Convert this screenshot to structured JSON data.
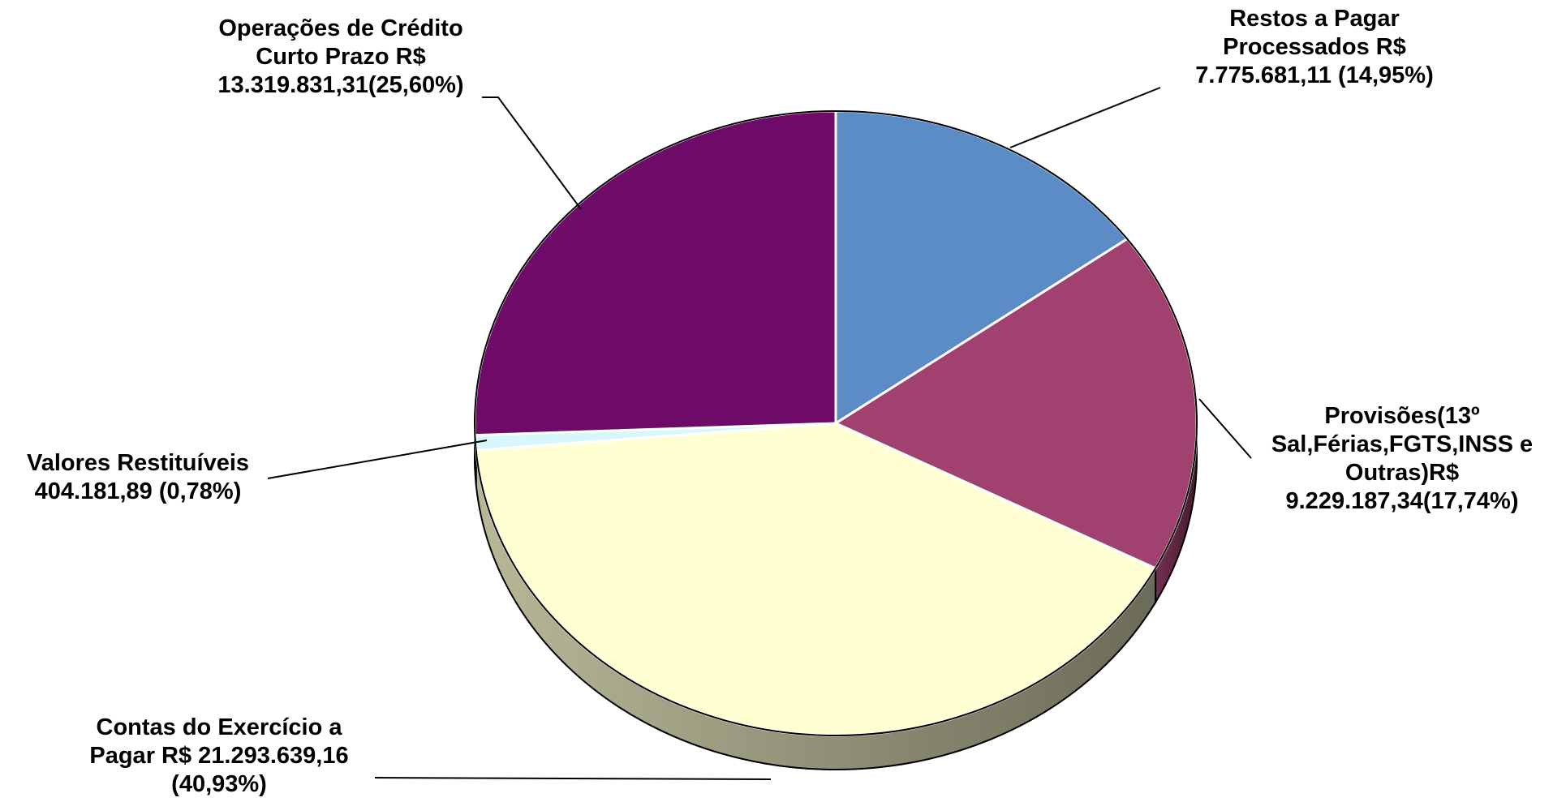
{
  "chart_data": {
    "type": "pie",
    "title": "",
    "slices": [
      {
        "category": "Restos a Pagar Processados",
        "value": 7775681.11,
        "percent": 14.95,
        "color": "#5B8CC6",
        "label_lines": [
          "Restos a Pagar",
          "Processados R$",
          "7.775.681,11  (14,95%)"
        ]
      },
      {
        "category": "Provisões(13º Sal,Férias,FGTS,INSS e Outras)",
        "value": 9229187.34,
        "percent": 17.74,
        "color": "#A1416F",
        "label_lines": [
          "Provisões(13º",
          "Sal,Férias,FGTS,INSS e",
          "Outras)R$",
          "9.229.187,34(17,74%)"
        ]
      },
      {
        "category": "Contas do Exercício a Pagar",
        "value": 21293639.16,
        "percent": 40.93,
        "color": "#FFFFD3",
        "label_lines": [
          "Contas do Exercício a",
          "Pagar R$ 21.293.639,16",
          "(40,93%)"
        ]
      },
      {
        "category": "Valores Restituíveis",
        "value": 404181.89,
        "percent": 0.78,
        "color": "#D6F7FB",
        "label_lines": [
          "Valores Restituíveis",
          "404.181,89  (0,78%)"
        ]
      },
      {
        "category": "Operações de Crédito Curto Prazo",
        "value": 13319831.31,
        "percent": 25.6,
        "color": "#6E0A67",
        "label_lines": [
          "Operações de Crédito",
          "Curto Prazo R$",
          "13.319.831,31(25,60%)"
        ]
      }
    ],
    "start": "12 o'clock",
    "direction": "clockwise",
    "style": "3d-tilted",
    "legend": "none",
    "edge_color": "#000000",
    "separator_color": "#FFFFFF"
  }
}
